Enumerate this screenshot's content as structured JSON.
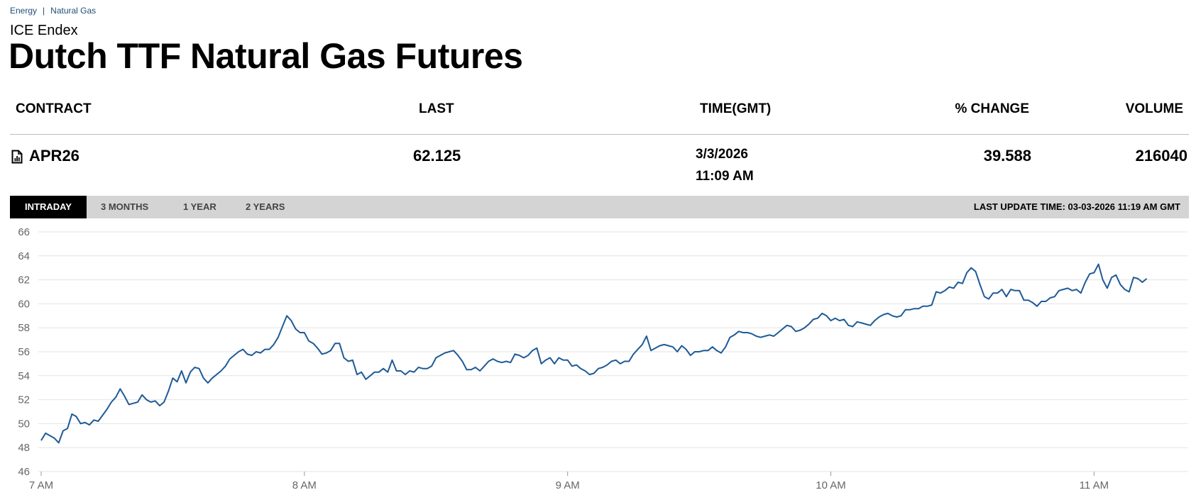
{
  "breadcrumb": {
    "items": [
      "Energy",
      "Natural Gas"
    ],
    "separator": "|"
  },
  "exchange": "ICE Endex",
  "title": "Dutch TTF Natural Gas Futures",
  "table": {
    "headers": {
      "contract": "CONTRACT",
      "last": "LAST",
      "time": "TIME(GMT)",
      "change": "% CHANGE",
      "volume": "VOLUME"
    },
    "row": {
      "contract": "APR26",
      "last": "62.125",
      "date": "3/3/2026",
      "time": "11:09 AM",
      "change": "39.588",
      "volume": "216040",
      "icon": "document-chart-icon"
    }
  },
  "tabs": [
    {
      "label": "INTRADAY",
      "active": true
    },
    {
      "label": "3 MONTHS",
      "active": false
    },
    {
      "label": "1 YEAR",
      "active": false
    },
    {
      "label": "2 YEARS",
      "active": false
    }
  ],
  "last_update": "LAST UPDATE TIME: 03-03-2026 11:19 AM GMT",
  "colors": {
    "line": "#1f5a96",
    "grid": "#e3e3e3",
    "tabbar": "#d4d4d4",
    "breadcrumb": "#1f4e79"
  },
  "chart_data": {
    "type": "line",
    "title": "",
    "xlabel": "",
    "ylabel": "",
    "ylim": [
      46,
      66
    ],
    "yticks": [
      46,
      48,
      50,
      52,
      54,
      56,
      58,
      60,
      62,
      64,
      66
    ],
    "xlim": [
      "07:00",
      "11:20"
    ],
    "xticks": [
      {
        "label": "7 AM",
        "time": "07:00"
      },
      {
        "label": "8 AM",
        "time": "08:00"
      },
      {
        "label": "9 AM",
        "time": "09:00"
      },
      {
        "label": "10 AM",
        "time": "10:00"
      },
      {
        "label": "11 AM",
        "time": "11:00"
      }
    ],
    "grid": true,
    "series": [
      {
        "points": [
          [
            "07:00",
            48.6
          ],
          [
            "07:01",
            49.2
          ],
          [
            "07:03",
            48.8
          ],
          [
            "07:04",
            48.4
          ],
          [
            "07:05",
            49.4
          ],
          [
            "07:06",
            49.6
          ],
          [
            "07:07",
            50.8
          ],
          [
            "07:08",
            50.6
          ],
          [
            "07:09",
            50.0
          ],
          [
            "07:10",
            50.1
          ],
          [
            "07:11",
            49.9
          ],
          [
            "07:12",
            50.3
          ],
          [
            "07:13",
            50.2
          ],
          [
            "07:15",
            51.2
          ],
          [
            "07:16",
            51.8
          ],
          [
            "07:17",
            52.2
          ],
          [
            "07:18",
            52.9
          ],
          [
            "07:19",
            52.3
          ],
          [
            "07:20",
            51.6
          ],
          [
            "07:21",
            51.7
          ],
          [
            "07:22",
            51.8
          ],
          [
            "07:23",
            52.4
          ],
          [
            "07:24",
            52.0
          ],
          [
            "07:25",
            51.8
          ],
          [
            "07:26",
            51.9
          ],
          [
            "07:27",
            51.5
          ],
          [
            "07:28",
            51.8
          ],
          [
            "07:29",
            52.7
          ],
          [
            "07:30",
            53.8
          ],
          [
            "07:31",
            53.5
          ],
          [
            "07:32",
            54.4
          ],
          [
            "07:33",
            53.4
          ],
          [
            "07:34",
            54.3
          ],
          [
            "07:35",
            54.7
          ],
          [
            "07:36",
            54.6
          ],
          [
            "07:37",
            53.8
          ],
          [
            "07:38",
            53.4
          ],
          [
            "07:39",
            53.8
          ],
          [
            "07:41",
            54.4
          ],
          [
            "07:42",
            54.8
          ],
          [
            "07:43",
            55.4
          ],
          [
            "07:45",
            56.0
          ],
          [
            "07:46",
            56.2
          ],
          [
            "07:47",
            55.8
          ],
          [
            "07:48",
            55.7
          ],
          [
            "07:49",
            56.0
          ],
          [
            "07:50",
            55.9
          ],
          [
            "07:51",
            56.2
          ],
          [
            "07:52",
            56.2
          ],
          [
            "07:53",
            56.6
          ],
          [
            "07:54",
            57.2
          ],
          [
            "07:55",
            58.1
          ],
          [
            "07:56",
            59.0
          ],
          [
            "07:57",
            58.6
          ],
          [
            "07:58",
            57.9
          ],
          [
            "07:59",
            57.6
          ],
          [
            "08:00",
            57.6
          ],
          [
            "08:01",
            56.9
          ],
          [
            "08:02",
            56.7
          ],
          [
            "08:03",
            56.3
          ],
          [
            "08:04",
            55.8
          ],
          [
            "08:05",
            55.9
          ],
          [
            "08:06",
            56.1
          ],
          [
            "08:07",
            56.7
          ],
          [
            "08:08",
            56.7
          ],
          [
            "08:09",
            55.5
          ],
          [
            "08:10",
            55.2
          ],
          [
            "08:11",
            55.3
          ],
          [
            "08:12",
            54.1
          ],
          [
            "08:13",
            54.3
          ],
          [
            "08:14",
            53.7
          ],
          [
            "08:15",
            54.0
          ],
          [
            "08:16",
            54.3
          ],
          [
            "08:17",
            54.3
          ],
          [
            "08:18",
            54.6
          ],
          [
            "08:19",
            54.3
          ],
          [
            "08:20",
            55.3
          ],
          [
            "08:21",
            54.4
          ],
          [
            "08:22",
            54.4
          ],
          [
            "08:23",
            54.1
          ],
          [
            "08:24",
            54.4
          ],
          [
            "08:25",
            54.3
          ],
          [
            "08:26",
            54.7
          ],
          [
            "08:27",
            54.6
          ],
          [
            "08:28",
            54.6
          ],
          [
            "08:29",
            54.8
          ],
          [
            "08:30",
            55.5
          ],
          [
            "08:31",
            55.7
          ],
          [
            "08:32",
            55.9
          ],
          [
            "08:33",
            56.0
          ],
          [
            "08:34",
            56.1
          ],
          [
            "08:35",
            55.7
          ],
          [
            "08:36",
            55.2
          ],
          [
            "08:37",
            54.5
          ],
          [
            "08:38",
            54.5
          ],
          [
            "08:39",
            54.7
          ],
          [
            "08:40",
            54.4
          ],
          [
            "08:41",
            54.8
          ],
          [
            "08:42",
            55.2
          ],
          [
            "08:43",
            55.4
          ],
          [
            "08:44",
            55.2
          ],
          [
            "08:45",
            55.1
          ],
          [
            "08:46",
            55.2
          ],
          [
            "08:47",
            55.1
          ],
          [
            "08:48",
            55.8
          ],
          [
            "08:49",
            55.7
          ],
          [
            "08:50",
            55.5
          ],
          [
            "08:51",
            55.7
          ],
          [
            "08:52",
            56.1
          ],
          [
            "08:53",
            56.3
          ],
          [
            "08:54",
            55.0
          ],
          [
            "08:55",
            55.3
          ],
          [
            "08:56",
            55.5
          ],
          [
            "08:57",
            55.0
          ],
          [
            "08:58",
            55.5
          ],
          [
            "08:59",
            55.3
          ],
          [
            "09:00",
            55.3
          ],
          [
            "09:01",
            54.8
          ],
          [
            "09:02",
            54.9
          ],
          [
            "09:03",
            54.6
          ],
          [
            "09:04",
            54.4
          ],
          [
            "09:05",
            54.1
          ],
          [
            "09:06",
            54.2
          ],
          [
            "09:07",
            54.6
          ],
          [
            "09:08",
            54.7
          ],
          [
            "09:09",
            54.9
          ],
          [
            "09:10",
            55.2
          ],
          [
            "09:11",
            55.3
          ],
          [
            "09:12",
            55.0
          ],
          [
            "09:13",
            55.2
          ],
          [
            "09:14",
            55.2
          ],
          [
            "09:15",
            55.8
          ],
          [
            "09:16",
            56.2
          ],
          [
            "09:17",
            56.6
          ],
          [
            "09:18",
            57.3
          ],
          [
            "09:19",
            56.1
          ],
          [
            "09:20",
            56.3
          ],
          [
            "09:21",
            56.5
          ],
          [
            "09:22",
            56.6
          ],
          [
            "09:23",
            56.5
          ],
          [
            "09:24",
            56.4
          ],
          [
            "09:25",
            56.0
          ],
          [
            "09:26",
            56.5
          ],
          [
            "09:27",
            56.2
          ],
          [
            "09:28",
            55.7
          ],
          [
            "09:29",
            56.0
          ],
          [
            "09:30",
            56.0
          ],
          [
            "09:31",
            56.1
          ],
          [
            "09:32",
            56.1
          ],
          [
            "09:33",
            56.4
          ],
          [
            "09:34",
            56.1
          ],
          [
            "09:35",
            55.9
          ],
          [
            "09:36",
            56.4
          ],
          [
            "09:37",
            57.2
          ],
          [
            "09:38",
            57.4
          ],
          [
            "09:39",
            57.7
          ],
          [
            "09:40",
            57.6
          ],
          [
            "09:41",
            57.6
          ],
          [
            "09:42",
            57.5
          ],
          [
            "09:43",
            57.3
          ],
          [
            "09:44",
            57.2
          ],
          [
            "09:45",
            57.3
          ],
          [
            "09:46",
            57.4
          ],
          [
            "09:47",
            57.3
          ],
          [
            "09:48",
            57.6
          ],
          [
            "09:49",
            57.9
          ],
          [
            "09:50",
            58.2
          ],
          [
            "09:51",
            58.1
          ],
          [
            "09:52",
            57.7
          ],
          [
            "09:53",
            57.8
          ],
          [
            "09:54",
            58.0
          ],
          [
            "09:55",
            58.3
          ],
          [
            "09:56",
            58.7
          ],
          [
            "09:57",
            58.8
          ],
          [
            "09:58",
            59.2
          ],
          [
            "09:59",
            59.0
          ],
          [
            "10:00",
            58.6
          ],
          [
            "10:01",
            58.8
          ],
          [
            "10:02",
            58.6
          ],
          [
            "10:03",
            58.7
          ],
          [
            "10:04",
            58.2
          ],
          [
            "10:05",
            58.1
          ],
          [
            "10:06",
            58.5
          ],
          [
            "10:07",
            58.4
          ],
          [
            "10:08",
            58.3
          ],
          [
            "10:09",
            58.2
          ],
          [
            "10:10",
            58.6
          ],
          [
            "10:11",
            58.9
          ],
          [
            "10:12",
            59.1
          ],
          [
            "10:13",
            59.2
          ],
          [
            "10:14",
            59.0
          ],
          [
            "10:15",
            58.9
          ],
          [
            "10:16",
            59.0
          ],
          [
            "10:17",
            59.5
          ],
          [
            "10:18",
            59.5
          ],
          [
            "10:19",
            59.6
          ],
          [
            "10:20",
            59.6
          ],
          [
            "10:21",
            59.8
          ],
          [
            "10:22",
            59.8
          ],
          [
            "10:23",
            59.9
          ],
          [
            "10:24",
            61.0
          ],
          [
            "10:25",
            60.9
          ],
          [
            "10:26",
            61.1
          ],
          [
            "10:27",
            61.4
          ],
          [
            "10:28",
            61.3
          ],
          [
            "10:29",
            61.8
          ],
          [
            "10:30",
            61.7
          ],
          [
            "10:31",
            62.6
          ],
          [
            "10:32",
            63.0
          ],
          [
            "10:33",
            62.7
          ],
          [
            "10:34",
            61.6
          ],
          [
            "10:35",
            60.6
          ],
          [
            "10:36",
            60.4
          ],
          [
            "10:37",
            60.9
          ],
          [
            "10:38",
            60.9
          ],
          [
            "10:39",
            61.2
          ],
          [
            "10:40",
            60.6
          ],
          [
            "10:41",
            61.2
          ],
          [
            "10:42",
            61.1
          ],
          [
            "10:43",
            61.1
          ],
          [
            "10:44",
            60.3
          ],
          [
            "10:45",
            60.3
          ],
          [
            "10:46",
            60.1
          ],
          [
            "10:47",
            59.8
          ],
          [
            "10:48",
            60.2
          ],
          [
            "10:49",
            60.2
          ],
          [
            "10:50",
            60.5
          ],
          [
            "10:51",
            60.6
          ],
          [
            "10:52",
            61.1
          ],
          [
            "10:53",
            61.2
          ],
          [
            "10:54",
            61.3
          ],
          [
            "10:55",
            61.1
          ],
          [
            "10:56",
            61.2
          ],
          [
            "10:57",
            60.9
          ],
          [
            "10:58",
            61.8
          ],
          [
            "10:59",
            62.5
          ],
          [
            "11:00",
            62.6
          ],
          [
            "11:01",
            63.3
          ],
          [
            "11:02",
            62.0
          ],
          [
            "11:03",
            61.3
          ],
          [
            "11:04",
            62.2
          ],
          [
            "11:05",
            62.4
          ],
          [
            "11:06",
            61.6
          ],
          [
            "11:07",
            61.2
          ],
          [
            "11:08",
            61.0
          ],
          [
            "11:09",
            62.2
          ],
          [
            "11:10",
            62.1
          ],
          [
            "11:11",
            61.8
          ],
          [
            "11:12",
            62.1
          ]
        ]
      }
    ]
  }
}
